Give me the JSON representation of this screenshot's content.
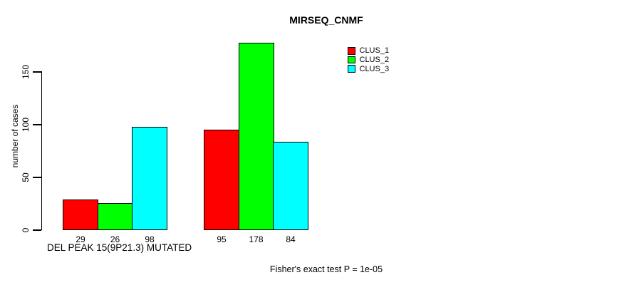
{
  "chart_data": {
    "type": "bar",
    "title": "MIRSEQ_CNMF",
    "xlabel": "DEL PEAK 15(9P21.3) MUTATED",
    "ylabel": "number of cases",
    "yticks": [
      0,
      50,
      100,
      150
    ],
    "ylim": [
      0,
      180
    ],
    "categories": [
      "DEL PEAK 15(9P21.3) MUTATED",
      ""
    ],
    "series": [
      {
        "name": "CLUS_1",
        "color": "#FF0000",
        "values": [
          29,
          95
        ]
      },
      {
        "name": "CLUS_2",
        "color": "#00FF00",
        "values": [
          26,
          178
        ]
      },
      {
        "name": "CLUS_3",
        "color": "#00FFFF",
        "values": [
          98,
          84
        ]
      }
    ],
    "show_bar_value_labels": true,
    "annotation": "Fisher's exact test P = 1e-05",
    "legend_position": "top-right",
    "grid": false,
    "bar_border_color": "#000000",
    "axis_color": "#000000",
    "text_color": "#000000",
    "background": "#FFFFFF"
  }
}
